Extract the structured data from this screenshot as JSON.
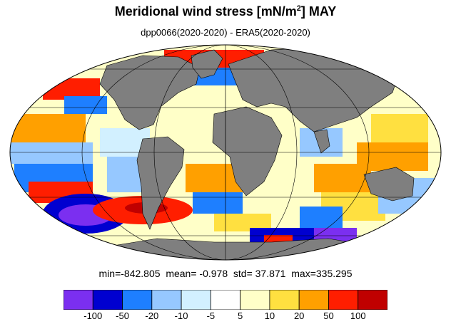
{
  "title": {
    "main": "Meridional wind stress [mN/m",
    "sup": "2",
    "tail": "] MAY"
  },
  "subtitle": "dpp0066(2020-2020) - ERA5(2020-2020)",
  "stats": {
    "min_label": "min=",
    "min": "-842.805",
    "mean_label": "mean=",
    "mean": "-0.978",
    "std_label": "std=",
    "std": "37.871",
    "max_label": "max=",
    "max": "335.295"
  },
  "colorbar": {
    "colors": [
      "#7b2ff0",
      "#0000d0",
      "#1e7fff",
      "#96c8ff",
      "#d2f0ff",
      "#ffffff",
      "#ffffc8",
      "#ffe040",
      "#ffa000",
      "#ff1e00",
      "#c00000"
    ],
    "tick_labels": [
      "-100",
      "-50",
      "-20",
      "-10",
      "-5",
      "5",
      "10",
      "20",
      "50",
      "100"
    ]
  },
  "map": {
    "projection": "Mollweide",
    "land_color": "#7f7f7f",
    "ocean_field": "wind stress difference (colored)"
  }
}
